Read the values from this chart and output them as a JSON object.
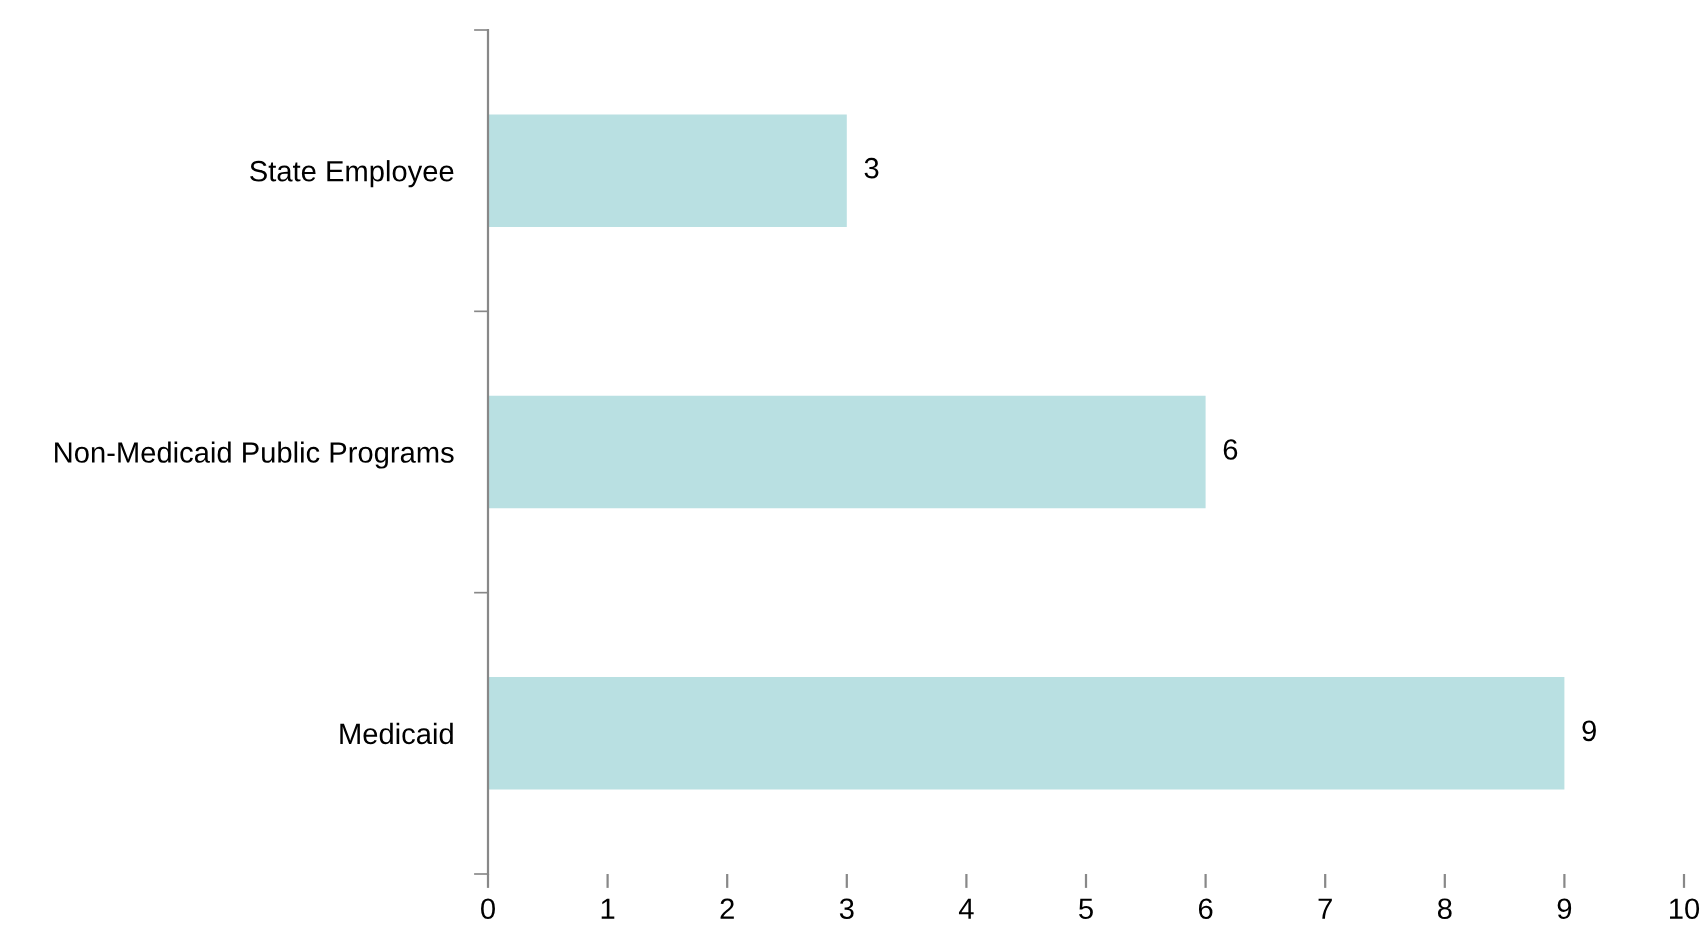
{
  "chart_data": {
    "type": "bar",
    "orientation": "horizontal",
    "categories": [
      "State Employee",
      "Non-Medicaid Public Programs",
      "Medicaid"
    ],
    "values": [
      3,
      6,
      9
    ],
    "color": "#b9e0e2",
    "xlim": [
      0,
      10
    ],
    "xticks": [
      0,
      1,
      2,
      3,
      4,
      5,
      6,
      7,
      8,
      9,
      10
    ],
    "data_labels": true,
    "grid": false,
    "legend": false
  }
}
